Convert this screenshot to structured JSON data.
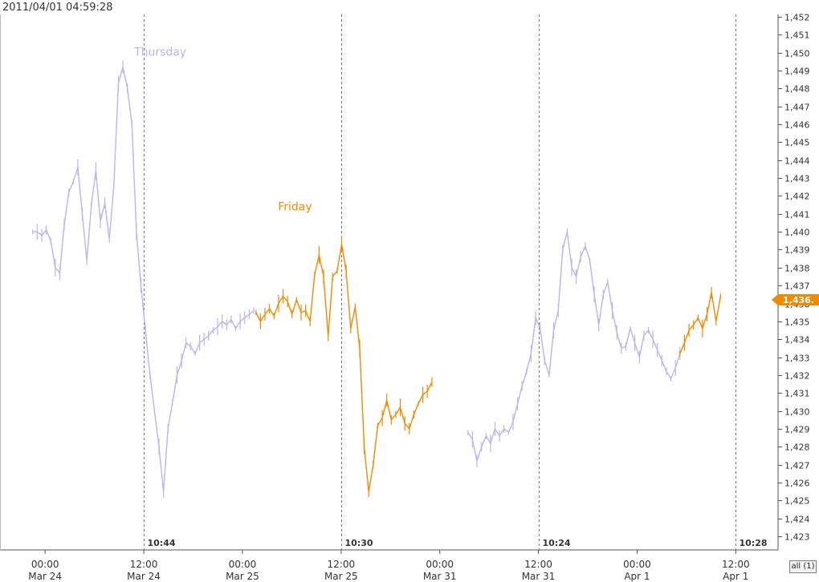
{
  "timestamp": "2011/04/01 04:59:28",
  "scope_button": "all (1)",
  "last_price_label": "1,436.",
  "colors": {
    "thursday": "#b9b6ee",
    "friday": "#f08a00",
    "grid": "#777777",
    "axis": "#555555"
  },
  "chart_data": {
    "type": "line",
    "ylim": [
      1423,
      1452
    ],
    "y_ticks": [
      "1,423",
      "1,424",
      "1,425",
      "1,426",
      "1,427",
      "1,428",
      "1,429",
      "1,430",
      "1,431",
      "1,432",
      "1,433",
      "1,434",
      "1,435",
      "1,436",
      "1,437",
      "1,438",
      "1,439",
      "1,440",
      "1,441",
      "1,442",
      "1,443",
      "1,444",
      "1,445",
      "1,446",
      "1,447",
      "1,448",
      "1,449",
      "1,450",
      "1,451",
      "1,452"
    ],
    "x_ticks": [
      {
        "time": "00:00",
        "date": "Mar 24"
      },
      {
        "time": "12:00",
        "date": "Mar 24"
      },
      {
        "time": "00:00",
        "date": "Mar 25"
      },
      {
        "time": "12:00",
        "date": "Mar 25"
      },
      {
        "time": "00:00",
        "date": "Mar 31"
      },
      {
        "time": "12:00",
        "date": "Mar 31"
      },
      {
        "time": "00:00",
        "date": "Apr 1"
      },
      {
        "time": "12:00",
        "date": "Apr 1"
      }
    ],
    "session_markers": [
      "10:44",
      "10:30",
      "10:24",
      "10:28"
    ],
    "annotations": [
      {
        "text": "Thursday",
        "series": "Thursday"
      },
      {
        "text": "Friday",
        "series": "Friday"
      }
    ],
    "series": [
      {
        "name": "Thursday",
        "color": "#b9b6ee",
        "x": [
          0.4,
          0.8,
          1.2,
          1.6,
          2.0,
          2.4,
          2.8,
          3.2,
          3.6,
          4.0,
          4.4,
          4.8,
          5.2,
          5.6,
          6.0,
          6.4,
          6.8,
          7.2,
          7.6,
          8.0,
          8.4,
          8.8,
          9.2,
          9.6,
          10.0,
          10.4,
          10.8,
          11.2,
          11.6,
          12.0,
          12.4,
          12.8,
          13.2,
          13.6,
          14.0,
          14.4,
          14.8,
          15.2,
          15.6,
          16.0,
          16.4,
          16.8,
          17.2,
          17.6,
          18.0,
          18.4,
          18.8,
          19.2,
          19.6,
          20.0
        ],
        "y": [
          1440.0,
          1440.0,
          1439.8,
          1440.1,
          1439.5,
          1438.0,
          1437.7,
          1440.4,
          1442.2,
          1442.8,
          1443.6,
          1441.0,
          1438.4,
          1441.5,
          1443.4,
          1440.6,
          1441.6,
          1439.6,
          1442.6,
          1448.3,
          1449.2,
          1448.0,
          1446.0,
          1440.0,
          1437.0,
          1434.5,
          1432.0,
          1430.0,
          1428.0,
          1425.5,
          1429.0,
          1430.5,
          1432.0,
          1432.8,
          1433.8,
          1433.6,
          1433.2,
          1433.8,
          1434.0,
          1434.2,
          1434.5,
          1434.7,
          1435.0,
          1434.8,
          1435.1,
          1434.6,
          1435.0,
          1435.2,
          1435.4,
          1435.6
        ]
      },
      {
        "name": "Friday",
        "color": "#f08a00",
        "x": [
          20.2,
          20.6,
          21.0,
          21.4,
          21.8,
          22.2,
          22.6,
          23.0,
          23.4,
          23.8,
          24.2,
          24.6,
          25.0,
          25.4,
          25.8,
          26.2,
          26.6,
          27.0,
          27.4,
          27.8,
          28.2,
          28.6,
          29.0,
          29.4,
          29.8,
          30.2,
          30.6,
          31.0,
          31.4,
          31.8,
          32.2,
          32.6,
          33.0,
          33.4,
          33.8,
          34.2,
          34.6,
          35.0,
          35.4,
          35.8
        ],
        "y": [
          1435.5,
          1435.0,
          1435.4,
          1435.7,
          1435.3,
          1436.0,
          1436.4,
          1436.1,
          1435.4,
          1436.2,
          1435.5,
          1435.6,
          1435.0,
          1437.6,
          1438.7,
          1437.5,
          1434.2,
          1437.5,
          1437.8,
          1439.3,
          1437.8,
          1434.6,
          1435.8,
          1433.5,
          1428.0,
          1425.5,
          1427.0,
          1429.2,
          1429.6,
          1430.6,
          1429.5,
          1429.8,
          1430.2,
          1429.3,
          1429.0,
          1429.8,
          1430.4,
          1430.9,
          1431.1,
          1431.6
        ]
      },
      {
        "name": "Thursday",
        "color": "#b9b6ee",
        "x": [
          39.0,
          39.4,
          39.8,
          40.2,
          40.6,
          41.0,
          41.4,
          41.8,
          42.2,
          42.6,
          43.0,
          43.4,
          43.8,
          44.2,
          44.6,
          45.0,
          45.4,
          45.8,
          46.2,
          46.6,
          47.0,
          47.4,
          47.8,
          48.2,
          48.6,
          49.0,
          49.4,
          49.8,
          50.2,
          50.6,
          51.0,
          51.4,
          51.8,
          52.2,
          52.6,
          53.0,
          53.4,
          53.8,
          54.2,
          54.6,
          55.0,
          55.4,
          55.8,
          56.2,
          56.6,
          57.0,
          57.4,
          57.8
        ],
        "y": [
          1428.8,
          1428.4,
          1427.2,
          1428.0,
          1428.6,
          1428.2,
          1429.0,
          1428.6,
          1429.0,
          1428.8,
          1429.4,
          1430.4,
          1431.4,
          1432.2,
          1433.2,
          1435.2,
          1434.6,
          1432.8,
          1432.0,
          1434.5,
          1435.6,
          1439.0,
          1440.0,
          1438.0,
          1437.5,
          1438.6,
          1439.2,
          1438.4,
          1436.5,
          1434.8,
          1436.5,
          1437.2,
          1435.6,
          1434.4,
          1433.5,
          1433.6,
          1434.6,
          1433.8,
          1433.0,
          1434.2,
          1434.5,
          1434.0,
          1433.4,
          1432.8,
          1432.2,
          1431.8,
          1432.4,
          1433.2
        ]
      },
      {
        "name": "Friday",
        "color": "#f08a00",
        "x": [
          57.8,
          58.2,
          58.6,
          59.0,
          59.4,
          59.8,
          60.2,
          60.6,
          61.0,
          61.4
        ],
        "y": [
          1433.2,
          1433.8,
          1434.5,
          1434.8,
          1435.2,
          1434.6,
          1435.4,
          1436.6,
          1435.0,
          1436.4
        ]
      }
    ],
    "x_range": [
      -2.5,
      66.5
    ]
  }
}
